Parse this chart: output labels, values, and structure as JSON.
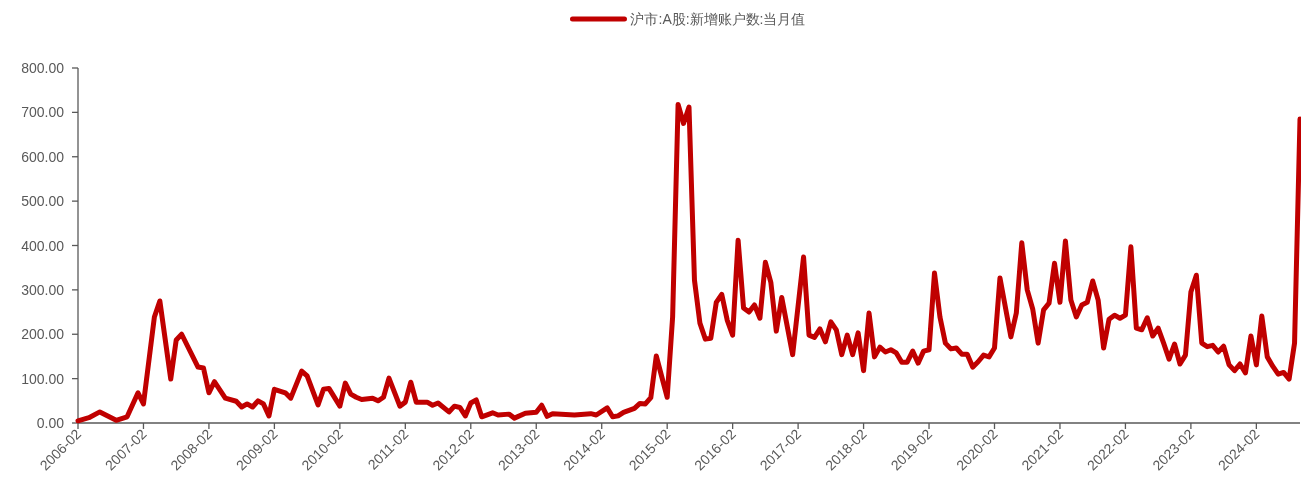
{
  "chart_data": {
    "type": "line",
    "legend": "top",
    "grid": false,
    "marker": "none",
    "line_style": "solid",
    "xlim": [
      "2006-02",
      "2024-10"
    ],
    "xticks": [
      "2006-02",
      "2007-02",
      "2008-02",
      "2009-02",
      "2010-02",
      "2011-02",
      "2012-02",
      "2013-02",
      "2014-02",
      "2015-02",
      "2016-02",
      "2017-02",
      "2018-02",
      "2019-02",
      "2020-02",
      "2021-02",
      "2022-02",
      "2023-02",
      "2024-02"
    ],
    "ylim": [
      0,
      800
    ],
    "yticks": [
      {
        "value": 0,
        "label": "0.00"
      },
      {
        "value": 100,
        "label": "100.00"
      },
      {
        "value": 200,
        "label": "200.00"
      },
      {
        "value": 300,
        "label": "300.00"
      },
      {
        "value": 400,
        "label": "400.00"
      },
      {
        "value": 500,
        "label": "500.00"
      },
      {
        "value": 600,
        "label": "600.00"
      },
      {
        "value": 700,
        "label": "700.00"
      },
      {
        "value": 800,
        "label": "800.00"
      }
    ],
    "x": [
      "2006-02",
      "2006-04",
      "2006-06",
      "2006-09",
      "2006-11",
      "2007-01",
      "2007-02",
      "2007-04",
      "2007-05",
      "2007-07",
      "2007-08",
      "2007-09",
      "2007-12",
      "2008-01",
      "2008-02",
      "2008-03",
      "2008-05",
      "2008-07",
      "2008-08",
      "2008-09",
      "2008-10",
      "2008-11",
      "2008-12",
      "2009-01",
      "2009-02",
      "2009-04",
      "2009-05",
      "2009-07",
      "2009-08",
      "2009-10",
      "2009-11",
      "2009-12",
      "2010-02",
      "2010-03",
      "2010-04",
      "2010-05",
      "2010-06",
      "2010-08",
      "2010-09",
      "2010-10",
      "2010-11",
      "2011-01",
      "2011-02",
      "2011-03",
      "2011-04",
      "2011-06",
      "2011-07",
      "2011-08",
      "2011-10",
      "2011-11",
      "2011-12",
      "2012-01",
      "2012-02",
      "2012-03",
      "2012-04",
      "2012-06",
      "2012-07",
      "2012-09",
      "2012-10",
      "2012-12",
      "2013-02",
      "2013-03",
      "2013-04",
      "2013-05",
      "2013-09",
      "2013-12",
      "2014-01",
      "2014-03",
      "2014-04",
      "2014-05",
      "2014-06",
      "2014-08",
      "2014-09",
      "2014-10",
      "2014-11",
      "2014-12",
      "2015-02",
      "2015-03",
      "2015-04",
      "2015-05",
      "2015-06",
      "2015-07",
      "2015-08",
      "2015-09",
      "2015-10",
      "2015-11",
      "2015-12",
      "2016-01",
      "2016-02",
      "2016-03",
      "2016-04",
      "2016-05",
      "2016-06",
      "2016-07",
      "2016-08",
      "2016-09",
      "2016-10",
      "2016-11",
      "2017-01",
      "2017-03",
      "2017-04",
      "2017-05",
      "2017-06",
      "2017-07",
      "2017-08",
      "2017-09",
      "2017-10",
      "2017-11",
      "2017-12",
      "2018-01",
      "2018-02",
      "2018-03",
      "2018-04",
      "2018-05",
      "2018-06",
      "2018-07",
      "2018-08",
      "2018-09",
      "2018-10",
      "2018-11",
      "2018-12",
      "2019-01",
      "2019-02",
      "2019-03",
      "2019-04",
      "2019-05",
      "2019-06",
      "2019-07",
      "2019-08",
      "2019-09",
      "2019-10",
      "2019-11",
      "2019-12",
      "2020-01",
      "2020-02",
      "2020-03",
      "2020-05",
      "2020-06",
      "2020-07",
      "2020-08",
      "2020-09",
      "2020-10",
      "2020-11",
      "2020-12",
      "2021-01",
      "2021-02",
      "2021-03",
      "2021-04",
      "2021-05",
      "2021-06",
      "2021-07",
      "2021-08",
      "2021-09",
      "2021-10",
      "2021-11",
      "2021-12",
      "2022-01",
      "2022-02",
      "2022-03",
      "2022-04",
      "2022-05",
      "2022-06",
      "2022-07",
      "2022-08",
      "2022-09",
      "2022-10",
      "2022-11",
      "2022-12",
      "2023-01",
      "2023-02",
      "2023-03",
      "2023-04",
      "2023-05",
      "2023-06",
      "2023-07",
      "2023-08",
      "2023-09",
      "2023-10",
      "2023-11",
      "2023-12",
      "2024-01",
      "2024-02",
      "2024-03",
      "2024-04",
      "2024-05",
      "2024-06",
      "2024-07",
      "2024-08",
      "2024-09",
      "2024-10"
    ],
    "series": [
      {
        "name": "沪市:A股:新增账户数:当月值",
        "color": "#c00000",
        "values": [
          5,
          12,
          25,
          6,
          14,
          68,
          43,
          239,
          275,
          99,
          187,
          200,
          126,
          124,
          68,
          93,
          56,
          49,
          36,
          43,
          36,
          50,
          43,
          16,
          76,
          68,
          56,
          117,
          106,
          41,
          76,
          78,
          38,
          90,
          65,
          58,
          53,
          56,
          50,
          58,
          101,
          38,
          47,
          92,
          47,
          47,
          40,
          45,
          25,
          38,
          35,
          16,
          45,
          52,
          14,
          23,
          18,
          20,
          11,
          22,
          24,
          40,
          15,
          21,
          18,
          21,
          18,
          34,
          14,
          16,
          24,
          33,
          44,
          43,
          57,
          151,
          58,
          239,
          718,
          675,
          712,
          322,
          225,
          189,
          191,
          272,
          290,
          232,
          198,
          412,
          259,
          250,
          266,
          236,
          362,
          317,
          207,
          283,
          154,
          374,
          198,
          193,
          212,
          183,
          228,
          210,
          154,
          198,
          154,
          203,
          118,
          248,
          149,
          171,
          160,
          165,
          158,
          137,
          137,
          162,
          135,
          162,
          165,
          338,
          239,
          180,
          167,
          169,
          155,
          155,
          126,
          138,
          153,
          149,
          169,
          327,
          194,
          248,
          406,
          300,
          257,
          180,
          255,
          270,
          360,
          272,
          410,
          277,
          239,
          266,
          272,
          320,
          277,
          169,
          234,
          243,
          236,
          243,
          397,
          214,
          210,
          237,
          196,
          214,
          180,
          144,
          178,
          133,
          153,
          295,
          333,
          180,
          172,
          175,
          160,
          173,
          131,
          118,
          133,
          113,
          196,
          131,
          241,
          149,
          128,
          110,
          114,
          99,
          180,
          685
        ]
      }
    ]
  }
}
